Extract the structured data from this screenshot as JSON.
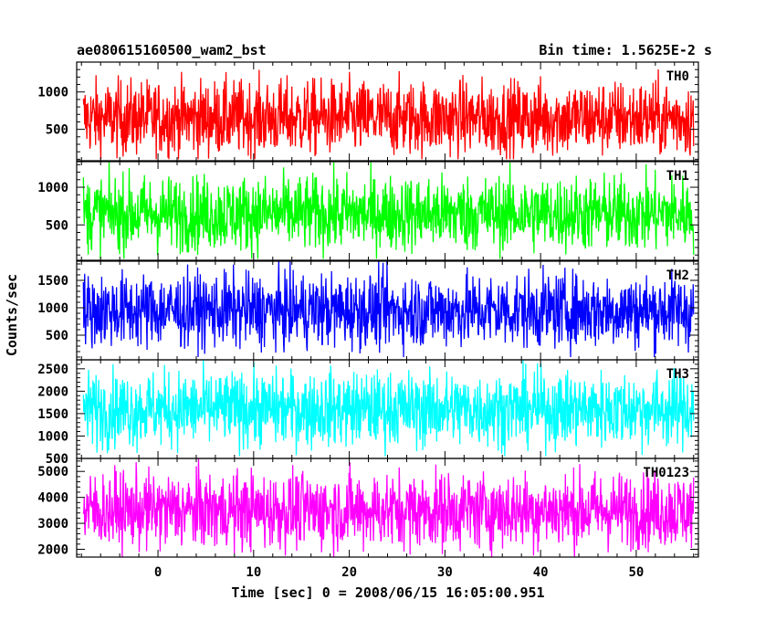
{
  "header": {
    "title": "ae080615160500_wam2_bst",
    "bin_time": "Bin time: 1.5625E-2 s"
  },
  "chart_data": {
    "type": "line",
    "xlabel": "Time [sec] 0 = 2008/06/15 16:05:00.951",
    "ylabel": "Counts/sec",
    "xlim": [
      -8.5,
      56.5
    ],
    "data_x_range": [
      -7.8,
      56.0
    ],
    "x_ticks": [
      0,
      10,
      20,
      30,
      40,
      50
    ],
    "x_tick_labels": [
      "0",
      "10",
      "20",
      "30",
      "40",
      "50"
    ],
    "panels": [
      {
        "name": "TH0",
        "color": "#ff0000",
        "ylim": [
          80,
          1400
        ],
        "y_ticks": [
          500,
          1000
        ],
        "y_tick_labels": [
          "500",
          "1000"
        ],
        "series": {
          "name": "TH0",
          "mean": 650,
          "min": 100,
          "max": 1400
        }
      },
      {
        "name": "TH1",
        "color": "#00ff00",
        "ylim": [
          30,
          1340
        ],
        "y_ticks": [
          500,
          1000
        ],
        "y_tick_labels": [
          "500",
          "1000"
        ],
        "series": {
          "name": "TH1",
          "mean": 650,
          "min": 50,
          "max": 1340
        }
      },
      {
        "name": "TH2",
        "color": "#0000ff",
        "ylim": [
          50,
          1850
        ],
        "y_ticks": [
          500,
          1000,
          1500
        ],
        "y_tick_labels": [
          "500",
          "1000",
          "1500"
        ],
        "series": {
          "name": "TH2",
          "mean": 950,
          "min": 100,
          "max": 1850
        }
      },
      {
        "name": "TH3",
        "color": "#00ffff",
        "ylim": [
          500,
          2700
        ],
        "y_ticks": [
          500,
          1000,
          1500,
          2000,
          2500
        ],
        "y_tick_labels": [
          "500",
          "1000",
          "1500",
          "2000",
          "2500"
        ],
        "series": {
          "name": "TH3",
          "mean": 1600,
          "min": 550,
          "max": 2700
        }
      },
      {
        "name": "TH0123",
        "color": "#ff00ff",
        "ylim": [
          1700,
          5500
        ],
        "y_ticks": [
          2000,
          3000,
          4000,
          5000
        ],
        "y_tick_labels": [
          "2000",
          "3000",
          "4000",
          "5000"
        ],
        "series": {
          "name": "TH0123",
          "mean": 3500,
          "min": 1700,
          "max": 5500
        }
      }
    ]
  }
}
